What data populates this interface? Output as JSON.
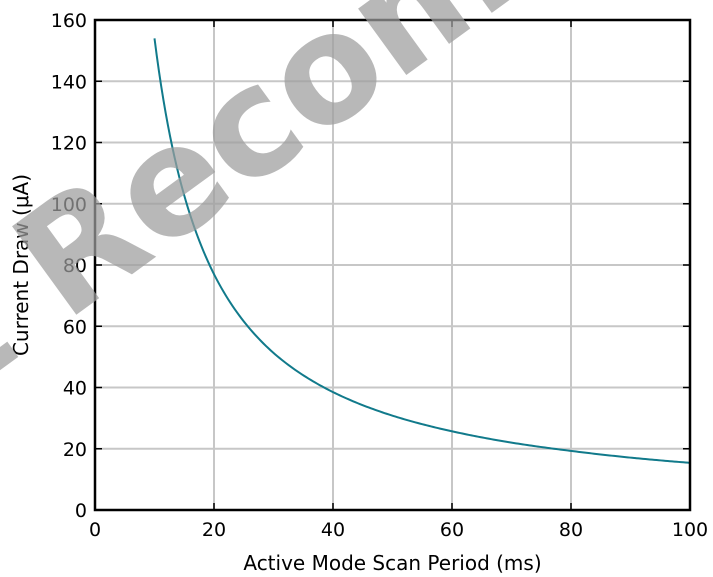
{
  "watermark": "Not Recommended",
  "colors": {
    "line": "#117a8b",
    "grid": "#c7c7c7",
    "axes": "#000000",
    "watermark": "#9e9e9e"
  },
  "chart_data": {
    "type": "line",
    "title": "",
    "xlabel": "Active Mode Scan Period (ms)",
    "ylabel": "Current Draw (μA)",
    "xlim": [
      0,
      100
    ],
    "ylim": [
      0,
      160
    ],
    "xticks": [
      0,
      20,
      40,
      60,
      80,
      100
    ],
    "yticks": [
      0,
      20,
      40,
      60,
      80,
      100,
      120,
      140,
      160
    ],
    "grid": true,
    "legend": "none",
    "series": [
      {
        "x": [
          10,
          12,
          14,
          16,
          18,
          20,
          25,
          30,
          35,
          40,
          50,
          60,
          70,
          80,
          90,
          100
        ],
        "y": [
          154,
          128.3,
          110.0,
          96.3,
          85.6,
          77.0,
          61.6,
          51.3,
          44.0,
          38.5,
          30.8,
          25.7,
          22.0,
          19.3,
          17.1,
          15.4
        ]
      }
    ]
  }
}
